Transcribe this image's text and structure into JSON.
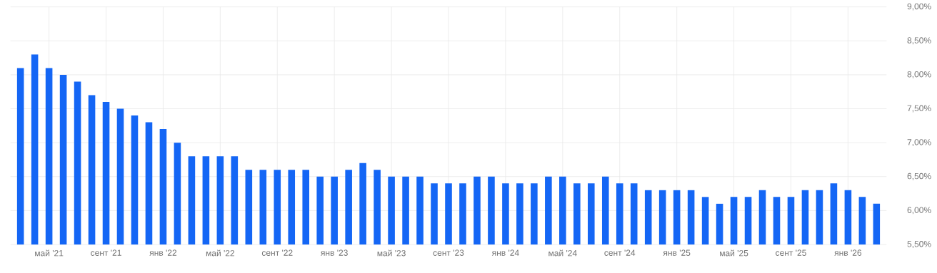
{
  "chart_data": {
    "type": "bar",
    "categories": [
      null,
      null,
      "май '21",
      null,
      null,
      null,
      "сент '21",
      null,
      null,
      null,
      "янв '22",
      null,
      null,
      null,
      "май '22",
      null,
      null,
      null,
      "сент '22",
      null,
      null,
      null,
      "янв '23",
      null,
      null,
      null,
      "май '23",
      null,
      null,
      null,
      "сент '23",
      null,
      null,
      null,
      "янв '24",
      null,
      null,
      null,
      "май '24",
      null,
      null,
      null,
      "сент '24",
      null,
      null,
      null,
      "янв '25",
      null,
      null,
      null,
      "май '25",
      null,
      null,
      null,
      "сент '25",
      null,
      null,
      null,
      "янв '26",
      null,
      null
    ],
    "values": [
      8.1,
      8.3,
      8.1,
      8.0,
      7.9,
      7.7,
      7.6,
      7.5,
      7.4,
      7.3,
      7.2,
      7.0,
      6.8,
      6.8,
      6.8,
      6.8,
      6.6,
      6.6,
      6.6,
      6.6,
      6.6,
      6.5,
      6.5,
      6.6,
      6.7,
      6.6,
      6.5,
      6.5,
      6.5,
      6.4,
      6.4,
      6.4,
      6.5,
      6.5,
      6.4,
      6.4,
      6.4,
      6.5,
      6.5,
      6.4,
      6.4,
      6.5,
      6.4,
      6.4,
      6.3,
      6.3,
      6.3,
      6.3,
      6.2,
      6.1,
      6.2,
      6.2,
      6.3,
      6.2,
      6.2,
      6.3,
      6.3,
      6.4,
      6.3,
      6.2,
      6.1
    ],
    "color": "#1466f5",
    "ylim": [
      5.5,
      9.0
    ],
    "yticks": [
      {
        "value": 5.5,
        "label": "5,50%"
      },
      {
        "value": 6.0,
        "label": "6,00%"
      },
      {
        "value": 6.5,
        "label": "6,50%"
      },
      {
        "value": 7.0,
        "label": "7,00%"
      },
      {
        "value": 7.5,
        "label": "7,50%"
      },
      {
        "value": 8.0,
        "label": "8,00%"
      },
      {
        "value": 8.5,
        "label": "8,50%"
      },
      {
        "value": 9.0,
        "label": "9,00%"
      }
    ],
    "grid": true
  }
}
